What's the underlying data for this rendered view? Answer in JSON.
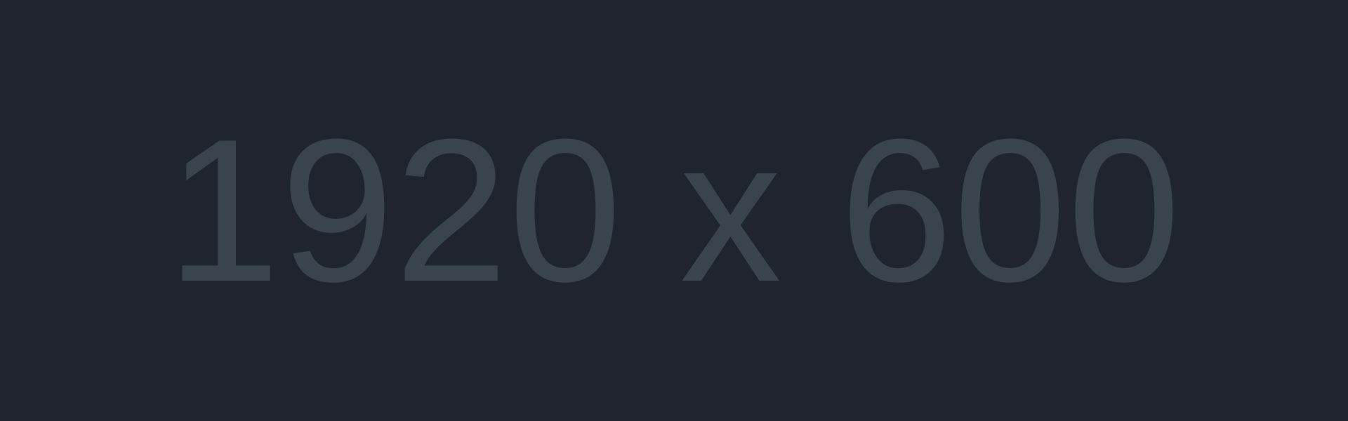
{
  "placeholder": {
    "text": "1920 x 600",
    "background_color": "#1f252c",
    "text_color": "#3a444d"
  }
}
